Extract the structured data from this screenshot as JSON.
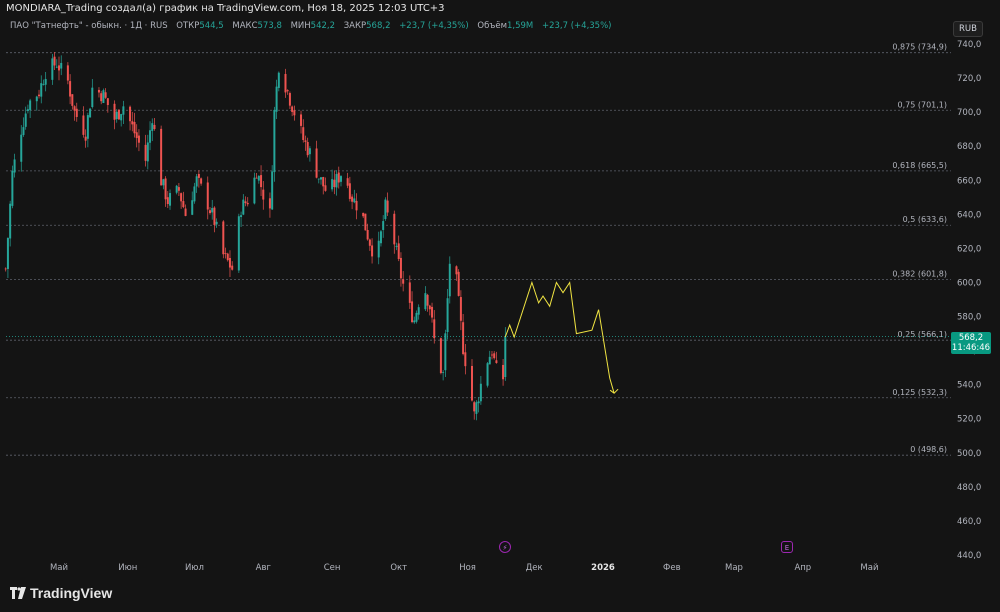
{
  "header": {
    "caption": "MONDIARA_Trading создал(а) график на TradingView.com, Ноя 18, 2025 12:03 UTC+3"
  },
  "legend": {
    "symbol": "ПАО \"Татнефть\" - обыкн. · 1Д · RUS",
    "open_label": "ОТКР",
    "open": "544,5",
    "high_label": "МАКС",
    "high": "573,8",
    "low_label": "МИН",
    "low": "542,2",
    "close_label": "ЗАКР",
    "close": "568,2",
    "change": "+23,7 (+4,35%)",
    "volume_label": "Объём",
    "volume": "1,59M",
    "volume_change": "+23,7 (+4,35%)"
  },
  "currency_button": "RUB",
  "price_tag": {
    "price": "568,2",
    "countdown": "11:46:46"
  },
  "events": {
    "dividend_icon": "lightning-icon",
    "earnings_icon": "E"
  },
  "logo": {
    "text": "TradingView",
    "icon": "tradingview-logo-icon"
  },
  "colors": {
    "up": "#26a69a",
    "down": "#ef5350",
    "projection": "#f0e442",
    "fib_line": "#5d606b",
    "price_tag": "#089981"
  },
  "chart_data": {
    "type": "candlestick",
    "y_axis": {
      "ticks": [
        "740,0",
        "720,0",
        "700,0",
        "680,0",
        "660,0",
        "640,0",
        "620,0",
        "600,0",
        "580,0",
        "560,0",
        "540,0",
        "520,0",
        "500,0",
        "480,0",
        "460,0",
        "440,0"
      ],
      "range": [
        437,
        746
      ]
    },
    "x_axis": {
      "ticks": [
        {
          "label": "Май",
          "date": "2025-05-01",
          "bold": false
        },
        {
          "label": "Июн",
          "date": "2025-06-01",
          "bold": false
        },
        {
          "label": "Июл",
          "date": "2025-07-01",
          "bold": false
        },
        {
          "label": "Авг",
          "date": "2025-08-01",
          "bold": false
        },
        {
          "label": "Сен",
          "date": "2025-09-01",
          "bold": false
        },
        {
          "label": "Окт",
          "date": "2025-10-01",
          "bold": false
        },
        {
          "label": "Ноя",
          "date": "2025-11-01",
          "bold": false
        },
        {
          "label": "Дек",
          "date": "2025-12-01",
          "bold": false
        },
        {
          "label": "2026",
          "date": "2026-01-01",
          "bold": true
        },
        {
          "label": "Фев",
          "date": "2026-02-01",
          "bold": false
        },
        {
          "label": "Мар",
          "date": "2026-03-01",
          "bold": false
        },
        {
          "label": "Апр",
          "date": "2026-04-01",
          "bold": false
        },
        {
          "label": "Май",
          "date": "2026-05-01",
          "bold": false
        }
      ]
    },
    "fib_levels": [
      {
        "label": "0,875 (734,9)",
        "price": 734.9
      },
      {
        "label": "0,75 (701,1)",
        "price": 701.1
      },
      {
        "label": "0,618 (665,5)",
        "price": 665.5
      },
      {
        "label": "0,5 (633,6)",
        "price": 633.6
      },
      {
        "label": "0,382 (601,8)",
        "price": 601.8
      },
      {
        "label": "0,25 (566,1)",
        "price": 566.1
      },
      {
        "label": "0,125 (532,3)",
        "price": 532.3
      },
      {
        "label": "0 (498,6)",
        "price": 498.6
      }
    ],
    "close_path": [
      [
        "2025-04-07",
        608
      ],
      [
        "2025-04-10",
        664
      ],
      [
        "2025-04-14",
        690
      ],
      [
        "2025-04-17",
        705
      ],
      [
        "2025-04-22",
        712
      ],
      [
        "2025-04-25",
        724
      ],
      [
        "2025-04-30",
        729
      ],
      [
        "2025-05-05",
        718
      ],
      [
        "2025-05-08",
        700
      ],
      [
        "2025-05-13",
        688
      ],
      [
        "2025-05-16",
        714
      ],
      [
        "2025-05-21",
        710
      ],
      [
        "2025-05-26",
        696
      ],
      [
        "2025-05-30",
        704
      ],
      [
        "2025-06-04",
        688
      ],
      [
        "2025-06-09",
        672
      ],
      [
        "2025-06-12",
        698
      ],
      [
        "2025-06-16",
        660
      ],
      [
        "2025-06-19",
        648
      ],
      [
        "2025-06-24",
        654
      ],
      [
        "2025-06-27",
        640
      ],
      [
        "2025-07-02",
        660
      ],
      [
        "2025-07-06",
        650
      ],
      [
        "2025-07-10",
        636
      ],
      [
        "2025-07-14",
        616
      ],
      [
        "2025-07-18",
        608
      ],
      [
        "2025-07-22",
        644
      ],
      [
        "2025-07-26",
        650
      ],
      [
        "2025-07-29",
        666
      ],
      [
        "2025-08-01",
        652
      ],
      [
        "2025-08-04",
        640
      ],
      [
        "2025-08-06",
        700
      ],
      [
        "2025-08-08",
        728
      ],
      [
        "2025-08-12",
        712
      ],
      [
        "2025-08-15",
        700
      ],
      [
        "2025-08-19",
        684
      ],
      [
        "2025-08-22",
        676
      ],
      [
        "2025-08-26",
        662
      ],
      [
        "2025-08-30",
        652
      ],
      [
        "2025-09-03",
        660
      ],
      [
        "2025-09-06",
        666
      ],
      [
        "2025-09-10",
        650
      ],
      [
        "2025-09-14",
        642
      ],
      [
        "2025-09-17",
        628
      ],
      [
        "2025-09-21",
        612
      ],
      [
        "2025-09-25",
        644
      ],
      [
        "2025-09-28",
        630
      ],
      [
        "2025-10-02",
        604
      ],
      [
        "2025-10-05",
        588
      ],
      [
        "2025-10-08",
        578
      ],
      [
        "2025-10-12",
        600
      ],
      [
        "2025-10-15",
        586
      ],
      [
        "2025-10-18",
        556
      ],
      [
        "2025-10-21",
        546
      ],
      [
        "2025-10-24",
        612
      ],
      [
        "2025-10-27",
        600
      ],
      [
        "2025-10-30",
        562
      ],
      [
        "2025-11-02",
        540
      ],
      [
        "2025-11-04",
        522
      ],
      [
        "2025-11-06",
        534
      ],
      [
        "2025-11-09",
        552
      ],
      [
        "2025-11-12",
        560
      ],
      [
        "2025-11-14",
        548
      ],
      [
        "2025-11-17",
        544
      ],
      [
        "2025-11-18",
        568.2
      ]
    ],
    "last_candle": {
      "date": "2025-11-18",
      "open": 544.5,
      "high": 573.8,
      "low": 542.2,
      "close": 568.2
    },
    "projection": [
      [
        "2025-11-18",
        568
      ],
      [
        "2025-11-20",
        575
      ],
      [
        "2025-11-22",
        568
      ],
      [
        "2025-11-30",
        600
      ],
      [
        "2025-12-03",
        588
      ],
      [
        "2025-12-05",
        592
      ],
      [
        "2025-12-08",
        586
      ],
      [
        "2025-12-11",
        600
      ],
      [
        "2025-12-14",
        594
      ],
      [
        "2025-12-17",
        600
      ],
      [
        "2025-12-20",
        570
      ],
      [
        "2025-12-27",
        572
      ],
      [
        "2025-12-30",
        584
      ],
      [
        "2026-01-04",
        544
      ],
      [
        "2026-01-06",
        535
      ]
    ],
    "last_price": 568.2
  }
}
